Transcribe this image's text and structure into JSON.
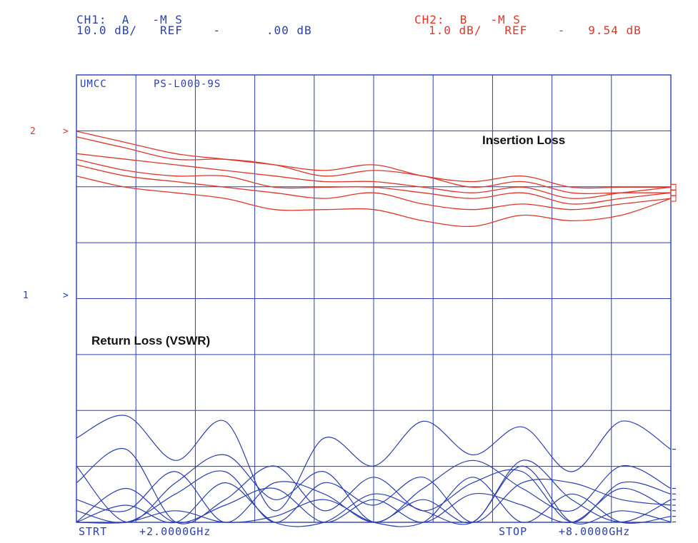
{
  "header": {
    "ch1_line1": "CH1:  A   -M S",
    "ch1_line2": "10.0 dB/   REF    -      .00 dB",
    "ch2_line1": "CH2:  B   -M S",
    "ch2_line2": "1.0 dB/   REF    -   9.54 dB"
  },
  "plot_label": {
    "left": "UMCC",
    "right": "PS-L000-9S"
  },
  "markers": {
    "ch2": "2",
    "ch1": "1",
    "arrow": ">"
  },
  "annotations": {
    "insertion_loss": "Insertion Loss",
    "return_loss": "Return Loss (VSWR)"
  },
  "footer": {
    "start_label": "STRT",
    "start_value": "+2.0000GHz",
    "stop_label": "STOP",
    "stop_value": "+8.0000GHz"
  },
  "colors": {
    "grid": "#2b3fb0",
    "ch1_trace": "#2b3fb0",
    "ch2_trace": "#e0362a"
  },
  "chart_data": {
    "type": "line",
    "x": [
      2.0,
      2.5,
      3.0,
      3.5,
      4.0,
      4.5,
      5.0,
      5.5,
      6.0,
      6.5,
      7.0,
      7.5,
      8.0
    ],
    "xlim": [
      2.0,
      8.0
    ],
    "grid": true,
    "channels": [
      {
        "name": "CH2",
        "series": [
          {
            "values": [
              0.0,
              -0.2,
              -0.4,
              -0.5,
              -0.6,
              -0.7,
              -0.6,
              -0.8,
              -0.9,
              -0.8,
              -1.0,
              -1.0,
              -1.0
            ]
          },
          {
            "values": [
              -0.1,
              -0.3,
              -0.5,
              -0.5,
              -0.6,
              -0.8,
              -0.7,
              -0.8,
              -1.0,
              -0.9,
              -1.1,
              -1.1,
              -1.1
            ]
          },
          {
            "values": [
              -0.4,
              -0.5,
              -0.6,
              -0.7,
              -0.8,
              -0.9,
              -0.9,
              -1.0,
              -1.1,
              -1.0,
              -1.2,
              -1.1,
              -1.0
            ]
          },
          {
            "values": [
              -0.5,
              -0.7,
              -0.8,
              -0.8,
              -1.0,
              -1.0,
              -1.0,
              -1.1,
              -1.2,
              -1.1,
              -1.3,
              -1.2,
              -1.1
            ]
          },
          {
            "values": [
              -0.6,
              -0.8,
              -0.9,
              -1.0,
              -1.1,
              -1.2,
              -1.1,
              -1.3,
              -1.4,
              -1.3,
              -1.4,
              -1.3,
              -1.2
            ]
          },
          {
            "values": [
              -0.8,
              -1.0,
              -1.1,
              -1.2,
              -1.4,
              -1.4,
              -1.4,
              -1.6,
              -1.7,
              -1.5,
              -1.6,
              -1.5,
              -1.2
            ]
          }
        ]
      },
      {
        "name": "CH1",
        "series": [
          {
            "values": [
              -25,
              -21,
              -29,
              -22,
              -38,
              -25,
              -30,
              -22,
              -28,
              -23,
              -31,
              -22,
              -27
            ]
          },
          {
            "values": [
              -30,
              -40,
              -33,
              -28,
              -36,
              -31,
              -40,
              -34,
              -29,
              -34,
              -38,
              -30,
              -34
            ]
          },
          {
            "values": [
              -33,
              -27,
              -40,
              -36,
              -30,
              -38,
              -32,
              -38,
              -33,
              -31,
              -40,
              -33,
              -35
            ]
          },
          {
            "values": [
              -36,
              -38,
              -31,
              -42,
              -33,
              -35,
              -45,
              -36,
              -40,
              -29,
              -36,
              -40,
              -36
            ]
          },
          {
            "values": [
              -38,
              -45,
              -35,
              -31,
              -41,
              -33,
              -37,
              -32,
              -44,
              -33,
              -33,
              -36,
              -37
            ]
          },
          {
            "values": [
              -40,
              -34,
              -44,
              -37,
              -34,
              -47,
              -36,
              -42,
              -35,
              -37,
              -45,
              -34,
              -38
            ]
          },
          {
            "values": [
              -42,
              -48,
              -38,
              -44,
              -39,
              -36,
              -41,
              -46,
              -32,
              -41,
              -35,
              -44,
              -39
            ]
          },
          {
            "values": [
              -44,
              -37,
              -46,
              -33,
              -46,
              -41,
              -35,
              -38,
              -48,
              -30,
              -42,
              -38,
              -40
            ]
          }
        ]
      }
    ]
  }
}
